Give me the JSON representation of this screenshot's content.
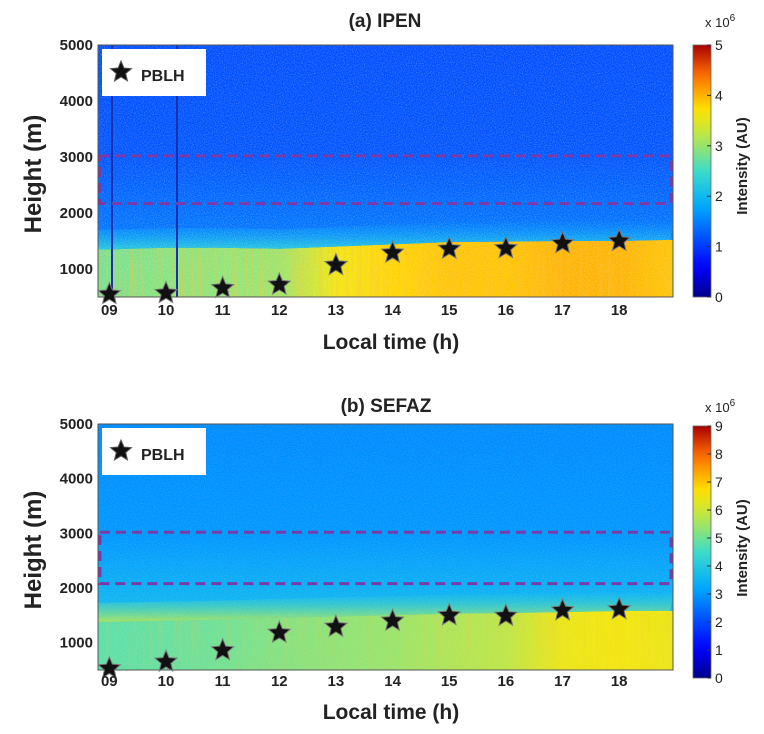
{
  "chart_data": [
    {
      "type": "heatmap",
      "title": "(a)  IPEN",
      "xlabel": "Local time (h)",
      "ylabel": "Height (m)",
      "x_ticks": [
        "09",
        "10",
        "11",
        "12",
        "13",
        "14",
        "15",
        "16",
        "17",
        "18"
      ],
      "x_tick_values": [
        9,
        10,
        11,
        12,
        13,
        14,
        15,
        16,
        17,
        18
      ],
      "xlim": [
        8.8,
        18.95
      ],
      "y_ticks": [
        "1000",
        "2000",
        "3000",
        "4000",
        "5000"
      ],
      "y_tick_values": [
        1000,
        2000,
        3000,
        4000,
        5000
      ],
      "ylim": [
        500,
        5000
      ],
      "colorbar": {
        "label": "Intensity (AU)",
        "multiplier": "x 10",
        "exponent": "6",
        "ticks": [
          "0",
          "1",
          "2",
          "3",
          "4",
          "5"
        ],
        "range": [
          0,
          5
        ]
      },
      "legend": {
        "label": "PBLH",
        "position": "top-left"
      },
      "series": [
        {
          "name": "PBLH",
          "x": [
            9,
            10,
            11,
            12,
            13,
            14,
            15,
            16,
            17,
            18
          ],
          "y": [
            550,
            570,
            660,
            720,
            1070,
            1290,
            1360,
            1370,
            1460,
            1500
          ]
        }
      ],
      "dashed_box": {
        "x": [
          8.8,
          18.95
        ],
        "y": [
          2170,
          3020
        ]
      },
      "surface_field": {
        "x": [
          9,
          10,
          11,
          12,
          13,
          14,
          15,
          16,
          17,
          18,
          18.9
        ],
        "top_height": [
          1350,
          1380,
          1380,
          1360,
          1400,
          1440,
          1480,
          1490,
          1500,
          1500,
          1520
        ],
        "intensity": [
          2.8,
          2.9,
          2.95,
          3.0,
          3.6,
          3.8,
          3.9,
          3.9,
          4.0,
          4.0,
          3.9
        ]
      },
      "background_intensity": 1.2
    },
    {
      "type": "heatmap",
      "title": "(b)  SEFAZ",
      "xlabel": "Local time (h)",
      "ylabel": "Height (m)",
      "x_ticks": [
        "09",
        "10",
        "11",
        "12",
        "13",
        "14",
        "15",
        "16",
        "17",
        "18"
      ],
      "x_tick_values": [
        9,
        10,
        11,
        12,
        13,
        14,
        15,
        16,
        17,
        18
      ],
      "xlim": [
        8.8,
        18.95
      ],
      "y_ticks": [
        "1000",
        "2000",
        "3000",
        "4000",
        "5000"
      ],
      "y_tick_values": [
        1000,
        2000,
        3000,
        4000,
        5000
      ],
      "ylim": [
        500,
        5000
      ],
      "colorbar": {
        "label": "Intensity (AU)",
        "multiplier": "x 10",
        "exponent": "6",
        "ticks": [
          "0",
          "1",
          "2",
          "3",
          "4",
          "5",
          "6",
          "7",
          "8",
          "9"
        ],
        "range": [
          0,
          9
        ]
      },
      "legend": {
        "label": "PBLH",
        "position": "top-left"
      },
      "series": [
        {
          "name": "PBLH",
          "x": [
            9,
            10,
            11,
            12,
            13,
            14,
            15,
            16,
            17,
            18
          ],
          "y": [
            530,
            650,
            860,
            1180,
            1290,
            1400,
            1500,
            1490,
            1590,
            1610
          ]
        }
      ],
      "dashed_box": {
        "x": [
          8.8,
          18.95
        ],
        "y": [
          2080,
          3020
        ]
      },
      "surface_field": {
        "x": [
          9,
          10,
          11,
          12,
          13,
          14,
          15,
          16,
          17,
          18,
          18.9
        ],
        "top_height": [
          1380,
          1400,
          1420,
          1450,
          1480,
          1500,
          1530,
          1540,
          1560,
          1580,
          1580
        ],
        "intensity": [
          4.8,
          4.9,
          5.0,
          5.2,
          5.3,
          5.4,
          5.6,
          5.8,
          6.4,
          6.5,
          6.4
        ]
      },
      "background_intensity": 3.0
    }
  ]
}
